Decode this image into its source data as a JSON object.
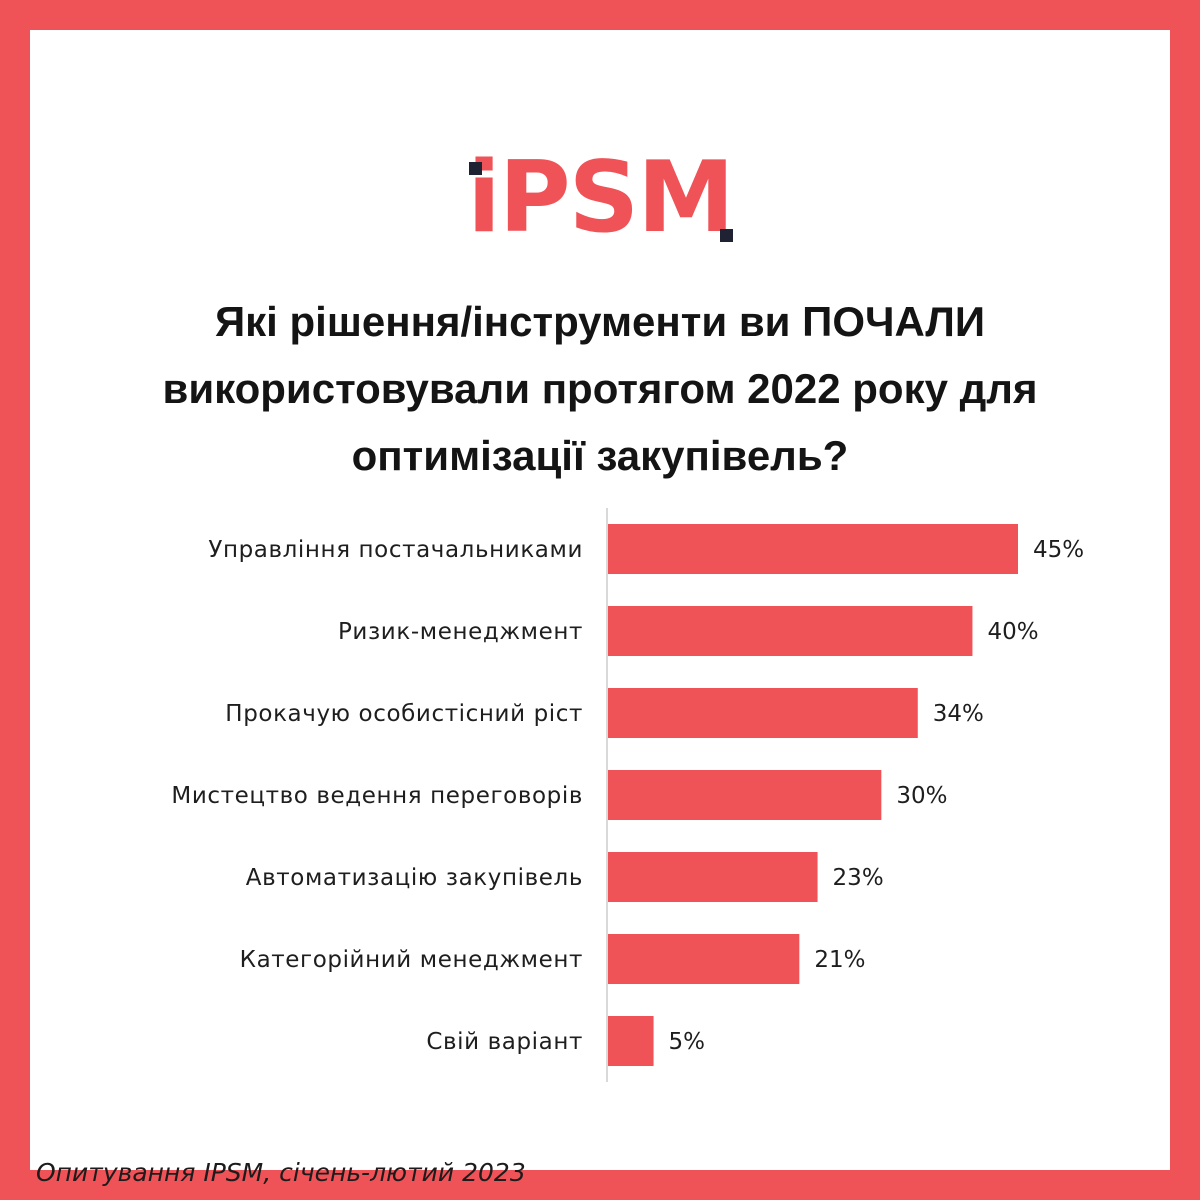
{
  "brand": {
    "logo_text": "iPSM",
    "accent_color": "#ef5257",
    "dark_color": "#1f2233"
  },
  "title_lines": [
    "Які рішення/інструменти ви ПОЧАЛИ",
    "використовували протягом 2022 року для",
    "оптимізації закупівель?"
  ],
  "chart_data": {
    "type": "bar",
    "orientation": "horizontal",
    "categories": [
      "Управління постачальниками",
      "Ризик-менеджмент",
      "Прокачую особистісний ріст",
      "Мистецтво ведення переговорів",
      "Автоматизацію закупівель",
      "Категорійний менеджмент",
      "Свій варіант"
    ],
    "values": [
      45,
      40,
      34,
      30,
      23,
      21,
      5
    ],
    "value_labels": [
      "45%",
      "40%",
      "34%",
      "30%",
      "23%",
      "21%",
      "5%"
    ],
    "unit": "%",
    "xlim": [
      0,
      45
    ],
    "grid": false,
    "legend": "none",
    "bar_color": "#ef5257"
  },
  "caption": "Опитування IPSM, січень-лютий 2023"
}
